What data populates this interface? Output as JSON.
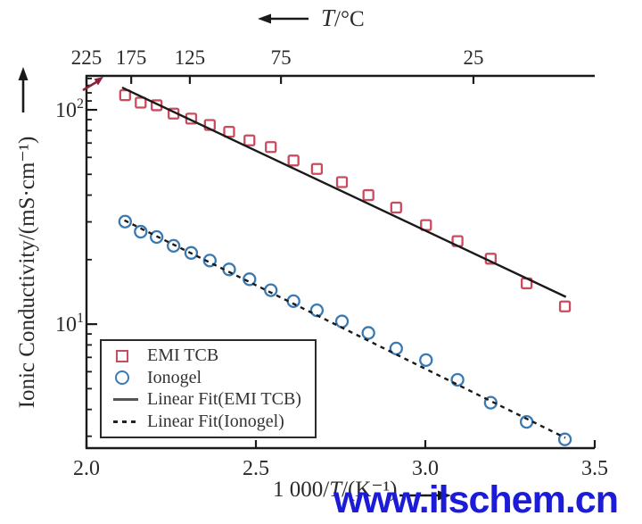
{
  "chart_data": {
    "type": "scatter",
    "title": "",
    "xlabel": "1 000/T/(K⁻¹)",
    "ylabel": "Ionic Conductivity/(mS·cm⁻¹)",
    "top_axis_label": "T/°C",
    "x_scale": "linear",
    "y_scale": "log",
    "xlim": [
      2.0,
      3.5
    ],
    "ylim": [
      2.64,
      144
    ],
    "grid": false,
    "x_ticks": [
      {
        "v": 2.0,
        "label": "2.0"
      },
      {
        "v": 2.5,
        "label": "2.5"
      },
      {
        "v": 3.0,
        "label": "3.0"
      },
      {
        "v": 3.5,
        "label": "3.5"
      }
    ],
    "top_ticks": [
      {
        "v": 2.0,
        "label": "225"
      },
      {
        "v": 2.132,
        "label": "175"
      },
      {
        "v": 2.305,
        "label": "125"
      },
      {
        "v": 2.574,
        "label": "75"
      },
      {
        "v": 3.142,
        "label": "25"
      }
    ],
    "y_major_ticks": [
      {
        "v": 100,
        "base": "10",
        "exp": "2"
      },
      {
        "v": 10,
        "base": "10",
        "exp": "1"
      }
    ],
    "y_minor_ticks": [
      140,
      130,
      120,
      110,
      90,
      80,
      70,
      60,
      50,
      40,
      30,
      20,
      9,
      8,
      7,
      6,
      5,
      4,
      3
    ],
    "x": [
      2.114,
      2.16,
      2.207,
      2.257,
      2.309,
      2.364,
      2.421,
      2.481,
      2.544,
      2.611,
      2.68,
      2.754,
      2.832,
      2.914,
      3.002,
      3.095,
      3.193,
      3.299,
      3.412
    ],
    "series": [
      {
        "name": "EMI TCB",
        "marker": "square",
        "color": "#c94b5e",
        "values": [
          117,
          108,
          105,
          96,
          91,
          85,
          79,
          72,
          67,
          58,
          53,
          46,
          40,
          35,
          29,
          24.4,
          20.2,
          15.5,
          12.1
        ]
      },
      {
        "name": "Ionogel",
        "marker": "circle",
        "color": "#3a79b1",
        "values": [
          30.1,
          27.0,
          25.5,
          23.2,
          21.5,
          19.8,
          18.0,
          16.2,
          14.4,
          12.8,
          11.6,
          10.3,
          9.1,
          7.7,
          6.8,
          5.5,
          4.3,
          3.5,
          2.9
        ]
      }
    ],
    "fits": [
      {
        "name": "Linear Fit(EMI TCB)",
        "style": "solid",
        "color": "#1a1a1a",
        "x1": 2.105,
        "y1": 127,
        "x2": 3.415,
        "y2": 13.4
      },
      {
        "name": "Linear Fit(Ionogel)",
        "style": "dashed",
        "color": "#1a1a1a",
        "x1": 2.112,
        "y1": 30.5,
        "x2": 3.413,
        "y2": 2.95
      }
    ],
    "legend": {
      "position": "lower-left",
      "items": [
        {
          "marker": "square",
          "label": "EMI TCB"
        },
        {
          "marker": "circle",
          "label": "Ionogel"
        },
        {
          "marker": "solid-line",
          "label": "Linear Fit(EMI TCB)"
        },
        {
          "marker": "dashed-line",
          "label": "Linear Fit(Ionogel)"
        }
      ]
    },
    "axis_color": "#1a1a1a"
  },
  "labels": {
    "top_axis": {
      "var": "T",
      "unit": "/°C"
    },
    "x_axis": {
      "pre": "1 000/",
      "var": "T",
      "unit": "/(K⁻¹)"
    },
    "y_axis": "Ionic Conductivity/(mS·cm⁻¹)"
  },
  "watermark": {
    "text": "www.ilschem.cn",
    "color": "#1b1bd8"
  }
}
